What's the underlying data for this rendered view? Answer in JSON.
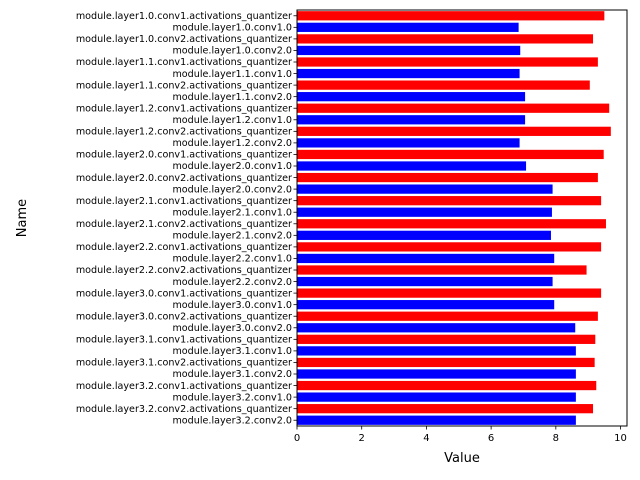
{
  "chart_data": {
    "type": "bar",
    "orientation": "horizontal",
    "title": "",
    "xlabel": "Value",
    "ylabel": "Name",
    "xlim": [
      0,
      10.2
    ],
    "xticks": [
      0,
      2,
      4,
      6,
      8,
      10
    ],
    "grid": false,
    "series_colors": {
      "activations_quantizer": "#ff0000",
      "conv": "#0000ff"
    },
    "bars": [
      {
        "name": "module.layer1.0.conv1.activations_quantizer",
        "value": 9.5,
        "series": "activations_quantizer"
      },
      {
        "name": "module.layer1.0.conv1.0",
        "value": 6.85,
        "series": "conv"
      },
      {
        "name": "module.layer1.0.conv2.activations_quantizer",
        "value": 9.15,
        "series": "activations_quantizer"
      },
      {
        "name": "module.layer1.0.conv2.0",
        "value": 6.9,
        "series": "conv"
      },
      {
        "name": "module.layer1.1.conv1.activations_quantizer",
        "value": 9.3,
        "series": "activations_quantizer"
      },
      {
        "name": "module.layer1.1.conv1.0",
        "value": 6.88,
        "series": "conv"
      },
      {
        "name": "module.layer1.1.conv2.activations_quantizer",
        "value": 9.05,
        "series": "activations_quantizer"
      },
      {
        "name": "module.layer1.1.conv2.0",
        "value": 7.05,
        "series": "conv"
      },
      {
        "name": "module.layer1.2.conv1.activations_quantizer",
        "value": 9.65,
        "series": "activations_quantizer"
      },
      {
        "name": "module.layer1.2.conv1.0",
        "value": 7.05,
        "series": "conv"
      },
      {
        "name": "module.layer1.2.conv2.activations_quantizer",
        "value": 9.7,
        "series": "activations_quantizer"
      },
      {
        "name": "module.layer1.2.conv2.0",
        "value": 6.88,
        "series": "conv"
      },
      {
        "name": "module.layer2.0.conv1.activations_quantizer",
        "value": 9.48,
        "series": "activations_quantizer"
      },
      {
        "name": "module.layer2.0.conv1.0",
        "value": 7.08,
        "series": "conv"
      },
      {
        "name": "module.layer2.0.conv2.activations_quantizer",
        "value": 9.3,
        "series": "activations_quantizer"
      },
      {
        "name": "module.layer2.0.conv2.0",
        "value": 7.9,
        "series": "conv"
      },
      {
        "name": "module.layer2.1.conv1.activations_quantizer",
        "value": 9.4,
        "series": "activations_quantizer"
      },
      {
        "name": "module.layer2.1.conv1.0",
        "value": 7.88,
        "series": "conv"
      },
      {
        "name": "module.layer2.1.conv2.activations_quantizer",
        "value": 9.55,
        "series": "activations_quantizer"
      },
      {
        "name": "module.layer2.1.conv2.0",
        "value": 7.85,
        "series": "conv"
      },
      {
        "name": "module.layer2.2.conv1.activations_quantizer",
        "value": 9.4,
        "series": "activations_quantizer"
      },
      {
        "name": "module.layer2.2.conv1.0",
        "value": 7.95,
        "series": "conv"
      },
      {
        "name": "module.layer2.2.conv2.activations_quantizer",
        "value": 8.95,
        "series": "activations_quantizer"
      },
      {
        "name": "module.layer2.2.conv2.0",
        "value": 7.9,
        "series": "conv"
      },
      {
        "name": "module.layer3.0.conv1.activations_quantizer",
        "value": 9.4,
        "series": "activations_quantizer"
      },
      {
        "name": "module.layer3.0.conv1.0",
        "value": 7.95,
        "series": "conv"
      },
      {
        "name": "module.layer3.0.conv2.activations_quantizer",
        "value": 9.3,
        "series": "activations_quantizer"
      },
      {
        "name": "module.layer3.0.conv2.0",
        "value": 8.6,
        "series": "conv"
      },
      {
        "name": "module.layer3.1.conv1.activations_quantizer",
        "value": 9.22,
        "series": "activations_quantizer"
      },
      {
        "name": "module.layer3.1.conv1.0",
        "value": 8.62,
        "series": "conv"
      },
      {
        "name": "module.layer3.1.conv2.activations_quantizer",
        "value": 9.2,
        "series": "activations_quantizer"
      },
      {
        "name": "module.layer3.1.conv2.0",
        "value": 8.62,
        "series": "conv"
      },
      {
        "name": "module.layer3.2.conv1.activations_quantizer",
        "value": 9.25,
        "series": "activations_quantizer"
      },
      {
        "name": "module.layer3.2.conv1.0",
        "value": 8.62,
        "series": "conv"
      },
      {
        "name": "module.layer3.2.conv2.activations_quantizer",
        "value": 9.15,
        "series": "activations_quantizer"
      },
      {
        "name": "module.layer3.2.conv2.0",
        "value": 8.62,
        "series": "conv"
      }
    ]
  }
}
